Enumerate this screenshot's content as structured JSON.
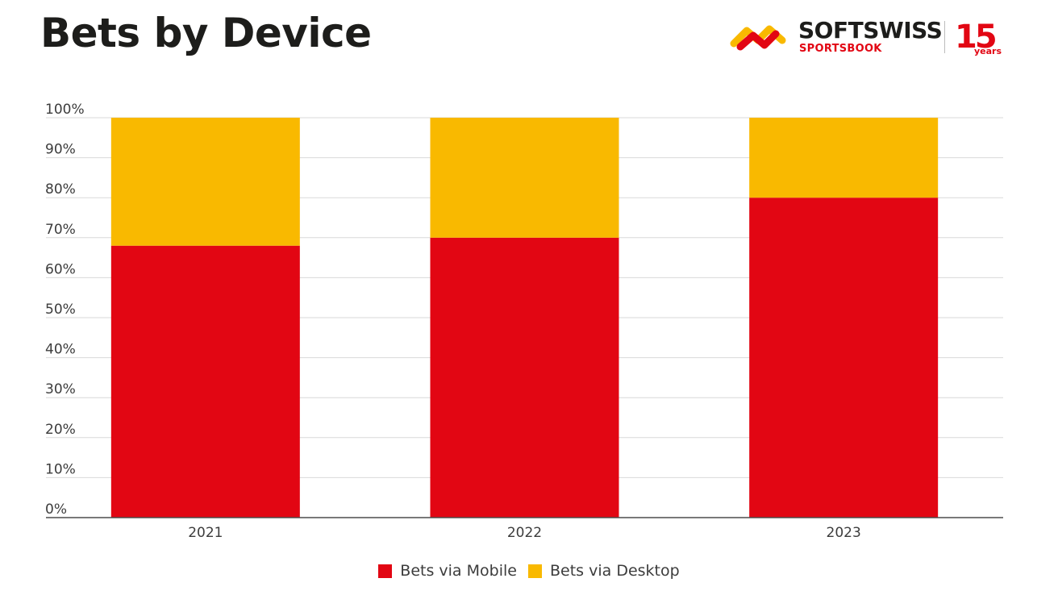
{
  "title": "Bets by Device",
  "brand": {
    "name": "SOFTSWISS",
    "sub": "SPORTSBOOK",
    "anniversary_number": "15",
    "anniversary_unit": "years",
    "colors": {
      "red": "#e20613",
      "yellow": "#f9b900",
      "dark": "#1d1d1b"
    }
  },
  "chart_data": {
    "type": "bar",
    "stacked": true,
    "categories": [
      "2021",
      "2022",
      "2023"
    ],
    "series": [
      {
        "name": "Bets via Mobile",
        "values": [
          68,
          70,
          80
        ],
        "color": "#e20613"
      },
      {
        "name": "Bets via Desktop",
        "values": [
          32,
          30,
          20
        ],
        "color": "#f9b900"
      }
    ],
    "ylim": [
      0,
      100
    ],
    "yticks": [
      "0%",
      "10%",
      "20%",
      "30%",
      "40%",
      "50%",
      "60%",
      "70%",
      "80%",
      "90%",
      "100%"
    ],
    "grid": true,
    "legend_position": "bottom-center"
  }
}
